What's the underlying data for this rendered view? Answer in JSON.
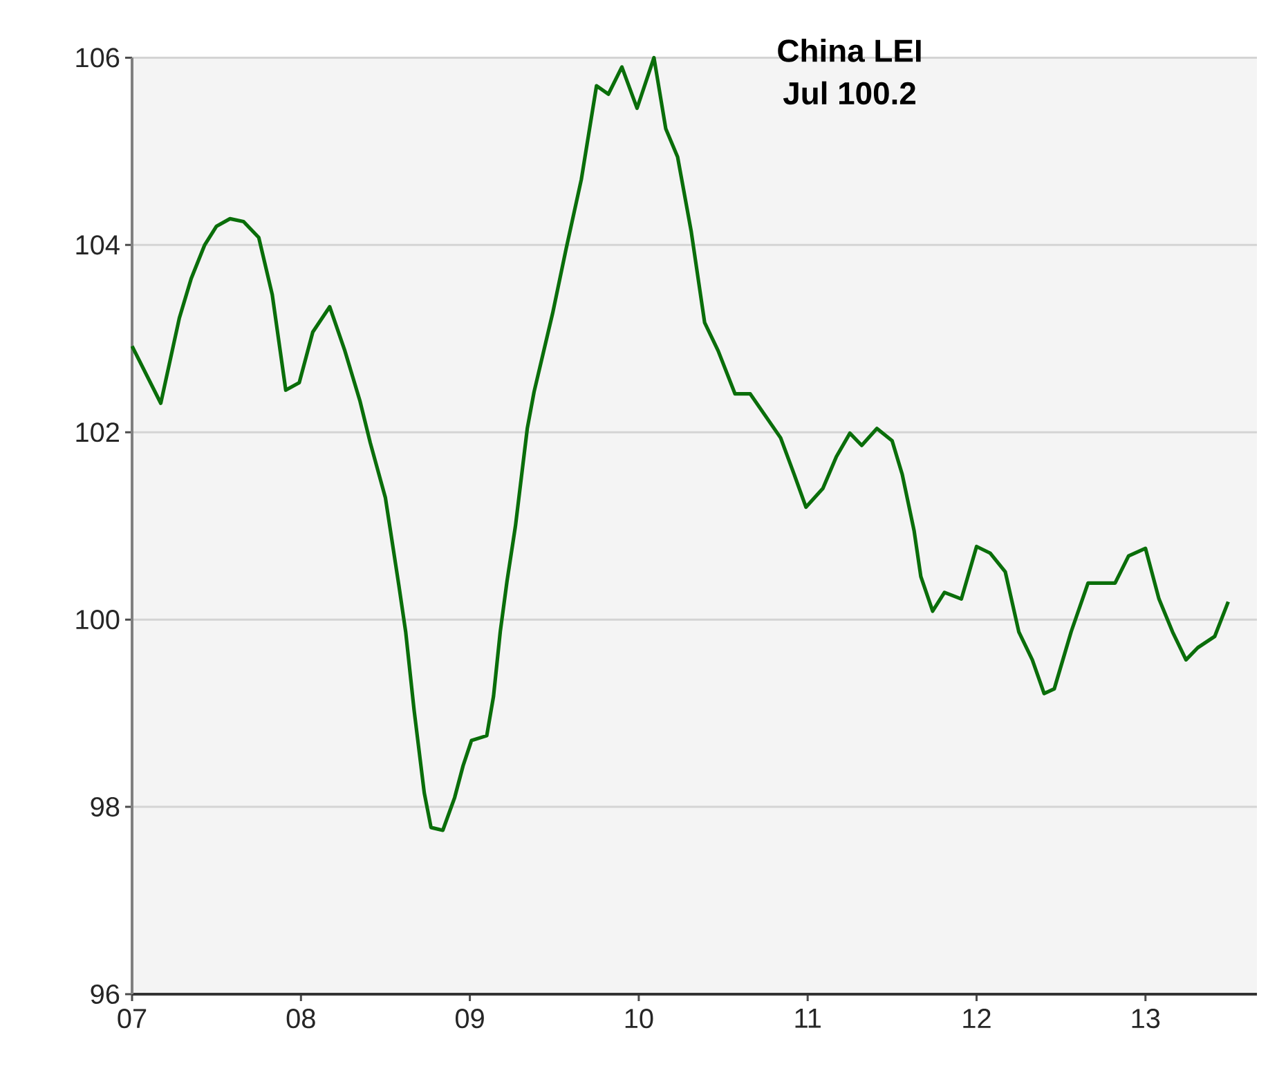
{
  "chart_data": {
    "type": "line",
    "title": "China LEI",
    "subtitle": "Jul 100.2",
    "xlim": [
      2007,
      2013.66
    ],
    "xticks": [
      {
        "value": 2007,
        "label": "07"
      },
      {
        "value": 2008,
        "label": "08"
      },
      {
        "value": 2009,
        "label": "09"
      },
      {
        "value": 2010,
        "label": "10"
      },
      {
        "value": 2011,
        "label": "11"
      },
      {
        "value": 2012,
        "label": "12"
      },
      {
        "value": 2013,
        "label": "13"
      }
    ],
    "ylim": [
      96,
      106
    ],
    "yticks": [
      96,
      98,
      100,
      102,
      104,
      106
    ],
    "grid": "y",
    "line_style": "solid",
    "series": [
      {
        "color": "#0a6e0a",
        "x": [
          2007.0,
          2007.17,
          2007.28,
          2007.35,
          2007.43,
          2007.5,
          2007.58,
          2007.66,
          2007.75,
          2007.83,
          2007.91,
          2007.99,
          2008.07,
          2008.17,
          2008.26,
          2008.35,
          2008.41,
          2008.5,
          2008.58,
          2008.62,
          2008.67,
          2008.73,
          2008.77,
          2008.84,
          2008.91,
          2008.96,
          2009.01,
          2009.1,
          2009.14,
          2009.18,
          2009.22,
          2009.27,
          2009.34,
          2009.38,
          2009.49,
          2009.57,
          2009.66,
          2009.75,
          2009.82,
          2009.9,
          2009.99,
          2010.09,
          2010.16,
          2010.23,
          2010.31,
          2010.39,
          2010.47,
          2010.57,
          2010.66,
          2010.84,
          2010.92,
          2010.99,
          2011.09,
          2011.17,
          2011.25,
          2011.32,
          2011.41,
          2011.5,
          2011.56,
          2011.63,
          2011.67,
          2011.74,
          2011.81,
          2011.91,
          2012.0,
          2012.08,
          2012.17,
          2012.25,
          2012.33,
          2012.4,
          2012.46,
          2012.56,
          2012.66,
          2012.82,
          2012.9,
          2013.0,
          2013.08,
          2013.16,
          2013.24,
          2013.31,
          2013.41,
          2013.49
        ],
        "values": [
          102.92,
          102.31,
          103.22,
          103.64,
          104.0,
          104.2,
          104.28,
          104.25,
          104.08,
          103.47,
          102.45,
          102.53,
          103.07,
          103.34,
          102.87,
          102.33,
          101.89,
          101.3,
          100.36,
          99.87,
          99.03,
          98.15,
          97.78,
          97.75,
          98.1,
          98.44,
          98.71,
          98.76,
          99.18,
          99.87,
          100.41,
          101.0,
          102.04,
          102.43,
          103.27,
          103.96,
          104.7,
          105.7,
          105.61,
          105.9,
          105.46,
          106.0,
          105.24,
          104.94,
          104.15,
          103.17,
          102.87,
          102.41,
          102.41,
          101.94,
          101.55,
          101.2,
          101.4,
          101.74,
          101.99,
          101.86,
          102.04,
          101.91,
          101.55,
          100.95,
          100.46,
          100.09,
          100.29,
          100.22,
          100.78,
          100.71,
          100.51,
          99.87,
          99.57,
          99.21,
          99.26,
          99.87,
          100.39,
          100.39,
          100.68,
          100.76,
          100.22,
          99.87,
          99.57,
          99.7,
          99.82,
          100.19
        ]
      }
    ]
  }
}
